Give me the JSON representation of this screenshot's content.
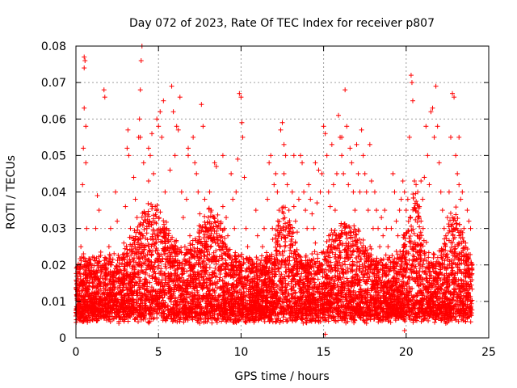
{
  "chart_data": {
    "type": "scatter",
    "title": "Day 072 of 2023, Rate Of TEC Index for receiver p807",
    "xlabel": "GPS time / hours",
    "ylabel": "ROTI / TECUs",
    "xlim": [
      0,
      25
    ],
    "ylim": [
      0,
      0.08
    ],
    "x_ticks": [
      0,
      5,
      10,
      15,
      20,
      25
    ],
    "x_tick_labels": [
      "0",
      "5",
      "10",
      "15",
      "20",
      "25"
    ],
    "y_ticks": [
      0,
      0.01,
      0.02,
      0.03,
      0.04,
      0.05,
      0.06,
      0.07,
      0.08
    ],
    "y_tick_labels": [
      "0",
      "0.01",
      "0.02",
      "0.03",
      "0.04",
      "0.05",
      "0.06",
      "0.07",
      "0.08"
    ],
    "grid": true,
    "marker": "+",
    "marker_color": "#ff0000",
    "series": [
      {
        "points": [
          [
            0.0,
            0.006
          ],
          [
            0.1,
            0.012
          ],
          [
            0.2,
            0.018
          ],
          [
            0.3,
            0.025
          ],
          [
            0.4,
            0.042
          ],
          [
            0.45,
            0.052
          ],
          [
            0.5,
            0.063
          ],
          [
            0.5,
            0.074
          ],
          [
            0.5,
            0.077
          ],
          [
            0.55,
            0.076
          ],
          [
            0.6,
            0.058
          ],
          [
            0.6,
            0.048
          ],
          [
            0.65,
            0.03
          ],
          [
            0.7,
            0.02
          ],
          [
            0.8,
            0.015
          ],
          [
            0.9,
            0.01
          ],
          [
            1.0,
            0.005
          ],
          [
            1.1,
            0.022
          ],
          [
            1.2,
            0.03
          ],
          [
            1.3,
            0.039
          ],
          [
            1.4,
            0.035
          ],
          [
            1.5,
            0.017
          ],
          [
            1.6,
            0.009
          ],
          [
            1.7,
            0.068
          ],
          [
            1.75,
            0.066
          ],
          [
            1.8,
            0.02
          ],
          [
            1.9,
            0.013
          ],
          [
            2.0,
            0.025
          ],
          [
            2.1,
            0.03
          ],
          [
            2.2,
            0.018
          ],
          [
            2.3,
            0.012
          ],
          [
            2.4,
            0.04
          ],
          [
            2.5,
            0.032
          ],
          [
            2.6,
            0.022
          ],
          [
            2.7,
            0.015
          ],
          [
            2.8,
            0.009
          ],
          [
            2.9,
            0.026
          ],
          [
            3.0,
            0.036
          ],
          [
            3.1,
            0.052
          ],
          [
            3.15,
            0.057
          ],
          [
            3.2,
            0.05
          ],
          [
            3.3,
            0.03
          ],
          [
            3.4,
            0.016
          ],
          [
            3.5,
            0.044
          ],
          [
            3.6,
            0.038
          ],
          [
            3.7,
            0.033
          ],
          [
            3.8,
            0.055
          ],
          [
            3.85,
            0.06
          ],
          [
            3.9,
            0.068
          ],
          [
            3.95,
            0.076
          ],
          [
            4.0,
            0.08
          ],
          [
            4.1,
            0.048
          ],
          [
            4.2,
            0.034
          ],
          [
            4.3,
            0.03
          ],
          [
            4.4,
            0.043
          ],
          [
            4.5,
            0.05
          ],
          [
            4.6,
            0.056
          ],
          [
            4.7,
            0.045
          ],
          [
            4.8,
            0.036
          ],
          [
            4.9,
            0.06
          ],
          [
            5.0,
            0.058
          ],
          [
            5.1,
            0.062
          ],
          [
            5.2,
            0.055
          ],
          [
            5.3,
            0.065
          ],
          [
            5.4,
            0.04
          ],
          [
            5.5,
            0.03
          ],
          [
            5.6,
            0.028
          ],
          [
            5.7,
            0.046
          ],
          [
            5.8,
            0.069
          ],
          [
            5.9,
            0.062
          ],
          [
            6.0,
            0.05
          ],
          [
            6.1,
            0.058
          ],
          [
            6.2,
            0.057
          ],
          [
            6.3,
            0.066
          ],
          [
            6.4,
            0.04
          ],
          [
            6.5,
            0.033
          ],
          [
            6.6,
            0.025
          ],
          [
            6.7,
            0.038
          ],
          [
            6.8,
            0.052
          ],
          [
            6.9,
            0.028
          ],
          [
            7.0,
            0.022
          ],
          [
            7.1,
            0.055
          ],
          [
            7.2,
            0.048
          ],
          [
            7.3,
            0.045
          ],
          [
            7.4,
            0.04
          ],
          [
            7.5,
            0.034
          ],
          [
            7.6,
            0.064
          ],
          [
            7.7,
            0.058
          ],
          [
            7.8,
            0.038
          ],
          [
            7.9,
            0.03
          ],
          [
            8.0,
            0.025
          ],
          [
            8.1,
            0.04
          ],
          [
            8.2,
            0.035
          ],
          [
            8.3,
            0.03
          ],
          [
            8.4,
            0.048
          ],
          [
            8.5,
            0.047
          ],
          [
            8.6,
            0.032
          ],
          [
            8.7,
            0.028
          ],
          [
            8.8,
            0.025
          ],
          [
            8.9,
            0.036
          ],
          [
            9.0,
            0.03
          ],
          [
            9.1,
            0.033
          ],
          [
            9.2,
            0.028
          ],
          [
            9.3,
            0.022
          ],
          [
            9.4,
            0.045
          ],
          [
            9.5,
            0.038
          ],
          [
            9.6,
            0.03
          ],
          [
            9.7,
            0.04
          ],
          [
            9.8,
            0.049
          ],
          [
            9.9,
            0.067
          ],
          [
            10.0,
            0.066
          ],
          [
            10.05,
            0.059
          ],
          [
            10.1,
            0.055
          ],
          [
            10.2,
            0.044
          ],
          [
            10.3,
            0.03
          ],
          [
            10.4,
            0.025
          ],
          [
            10.5,
            0.022
          ],
          [
            10.6,
            0.018
          ],
          [
            10.7,
            0.02
          ],
          [
            10.8,
            0.015
          ],
          [
            10.9,
            0.035
          ],
          [
            11.0,
            0.028
          ],
          [
            11.1,
            0.02
          ],
          [
            11.2,
            0.018
          ],
          [
            11.3,
            0.025
          ],
          [
            11.4,
            0.03
          ],
          [
            11.5,
            0.022
          ],
          [
            11.6,
            0.038
          ],
          [
            11.7,
            0.048
          ],
          [
            11.8,
            0.05
          ],
          [
            11.9,
            0.03
          ],
          [
            12.0,
            0.042
          ],
          [
            12.1,
            0.045
          ],
          [
            12.2,
            0.04
          ],
          [
            12.3,
            0.035
          ],
          [
            12.4,
            0.057
          ],
          [
            12.5,
            0.059
          ],
          [
            12.6,
            0.053
          ],
          [
            12.7,
            0.05
          ],
          [
            12.8,
            0.042
          ],
          [
            12.9,
            0.035
          ],
          [
            13.0,
            0.03
          ],
          [
            13.1,
            0.04
          ],
          [
            13.2,
            0.036
          ],
          [
            13.3,
            0.032
          ],
          [
            13.4,
            0.029
          ],
          [
            13.5,
            0.038
          ],
          [
            13.6,
            0.05
          ],
          [
            13.7,
            0.048
          ],
          [
            13.8,
            0.04
          ],
          [
            13.9,
            0.035
          ],
          [
            14.0,
            0.03
          ],
          [
            14.1,
            0.042
          ],
          [
            14.2,
            0.038
          ],
          [
            14.3,
            0.034
          ],
          [
            14.4,
            0.03
          ],
          [
            14.5,
            0.026
          ],
          [
            14.6,
            0.037
          ],
          [
            14.7,
            0.046
          ],
          [
            14.8,
            0.04
          ],
          [
            14.9,
            0.045
          ],
          [
            15.0,
            0.058
          ],
          [
            15.1,
            0.056
          ],
          [
            15.2,
            0.05
          ],
          [
            15.3,
            0.04
          ],
          [
            15.4,
            0.036
          ],
          [
            15.5,
            0.053
          ],
          [
            15.6,
            0.042
          ],
          [
            15.7,
            0.035
          ],
          [
            15.8,
            0.045
          ],
          [
            15.9,
            0.061
          ],
          [
            16.0,
            0.055
          ],
          [
            16.1,
            0.05
          ],
          [
            16.2,
            0.045
          ],
          [
            16.3,
            0.068
          ],
          [
            16.4,
            0.058
          ],
          [
            16.5,
            0.042
          ],
          [
            16.6,
            0.052
          ],
          [
            16.7,
            0.048
          ],
          [
            16.8,
            0.04
          ],
          [
            16.9,
            0.035
          ],
          [
            17.0,
            0.053
          ],
          [
            17.1,
            0.045
          ],
          [
            17.2,
            0.04
          ],
          [
            17.3,
            0.057
          ],
          [
            17.4,
            0.05
          ],
          [
            17.5,
            0.045
          ],
          [
            17.6,
            0.04
          ],
          [
            17.7,
            0.035
          ],
          [
            17.8,
            0.053
          ],
          [
            17.9,
            0.043
          ],
          [
            18.0,
            0.03
          ],
          [
            18.1,
            0.04
          ],
          [
            18.2,
            0.035
          ],
          [
            18.3,
            0.03
          ],
          [
            18.4,
            0.025
          ],
          [
            18.5,
            0.033
          ],
          [
            18.6,
            0.028
          ],
          [
            18.7,
            0.035
          ],
          [
            18.8,
            0.03
          ],
          [
            18.9,
            0.025
          ],
          [
            19.0,
            0.022
          ],
          [
            19.1,
            0.03
          ],
          [
            19.2,
            0.045
          ],
          [
            19.3,
            0.04
          ],
          [
            19.4,
            0.032
          ],
          [
            19.5,
            0.028
          ],
          [
            19.6,
            0.035
          ],
          [
            19.7,
            0.038
          ],
          [
            19.8,
            0.043
          ],
          [
            19.9,
            0.04
          ],
          [
            20.0,
            0.035
          ],
          [
            20.1,
            0.038
          ],
          [
            20.2,
            0.055
          ],
          [
            20.3,
            0.072
          ],
          [
            20.35,
            0.07
          ],
          [
            20.4,
            0.065
          ],
          [
            20.5,
            0.043
          ],
          [
            20.6,
            0.042
          ],
          [
            20.7,
            0.04
          ],
          [
            20.8,
            0.036
          ],
          [
            20.9,
            0.032
          ],
          [
            21.0,
            0.038
          ],
          [
            21.1,
            0.044
          ],
          [
            21.2,
            0.058
          ],
          [
            21.3,
            0.05
          ],
          [
            21.4,
            0.042
          ],
          [
            21.5,
            0.062
          ],
          [
            21.6,
            0.063
          ],
          [
            21.7,
            0.055
          ],
          [
            21.8,
            0.069
          ],
          [
            21.9,
            0.058
          ],
          [
            22.0,
            0.048
          ],
          [
            22.1,
            0.04
          ],
          [
            22.2,
            0.035
          ],
          [
            22.3,
            0.03
          ],
          [
            22.4,
            0.028
          ],
          [
            22.5,
            0.033
          ],
          [
            22.6,
            0.04
          ],
          [
            22.7,
            0.055
          ],
          [
            22.8,
            0.067
          ],
          [
            22.9,
            0.066
          ],
          [
            23.0,
            0.05
          ],
          [
            23.1,
            0.045
          ],
          [
            23.2,
            0.042
          ],
          [
            23.3,
            0.038
          ],
          [
            23.4,
            0.04
          ],
          [
            23.5,
            0.03
          ],
          [
            23.6,
            0.026
          ],
          [
            23.7,
            0.035
          ],
          [
            23.8,
            0.032
          ],
          [
            23.9,
            0.03
          ],
          [
            24.0,
            0.02
          ],
          [
            3.9,
            0.055
          ],
          [
            4.4,
            0.052
          ],
          [
            6.8,
            0.05
          ],
          [
            8.9,
            0.05
          ],
          [
            12.6,
            0.045
          ],
          [
            13.2,
            0.05
          ],
          [
            14.5,
            0.048
          ],
          [
            16.1,
            0.055
          ],
          [
            20.9,
            0.043
          ],
          [
            23.2,
            0.055
          ],
          [
            2.6,
            0.004
          ],
          [
            5.6,
            0.006
          ],
          [
            7.5,
            0.004
          ],
          [
            9.9,
            0.005
          ],
          [
            11.3,
            0.006
          ],
          [
            13.7,
            0.005
          ],
          [
            15.1,
            0.001
          ],
          [
            17.6,
            0.004
          ],
          [
            19.9,
            0.002
          ],
          [
            22.4,
            0.004
          ],
          [
            0.3,
            0.02
          ],
          [
            1.1,
            0.014
          ],
          [
            2.4,
            0.012
          ],
          [
            4.2,
            0.016
          ],
          [
            5.4,
            0.013
          ],
          [
            6.6,
            0.015
          ],
          [
            8.4,
            0.018
          ],
          [
            9.7,
            0.014
          ],
          [
            10.6,
            0.012
          ],
          [
            11.9,
            0.011
          ],
          [
            13.1,
            0.016
          ],
          [
            14.3,
            0.012
          ],
          [
            16.7,
            0.014
          ],
          [
            18.2,
            0.015
          ],
          [
            19.5,
            0.013
          ],
          [
            21.1,
            0.018
          ],
          [
            22.7,
            0.012
          ],
          [
            23.8,
            0.011
          ]
        ]
      }
    ]
  }
}
